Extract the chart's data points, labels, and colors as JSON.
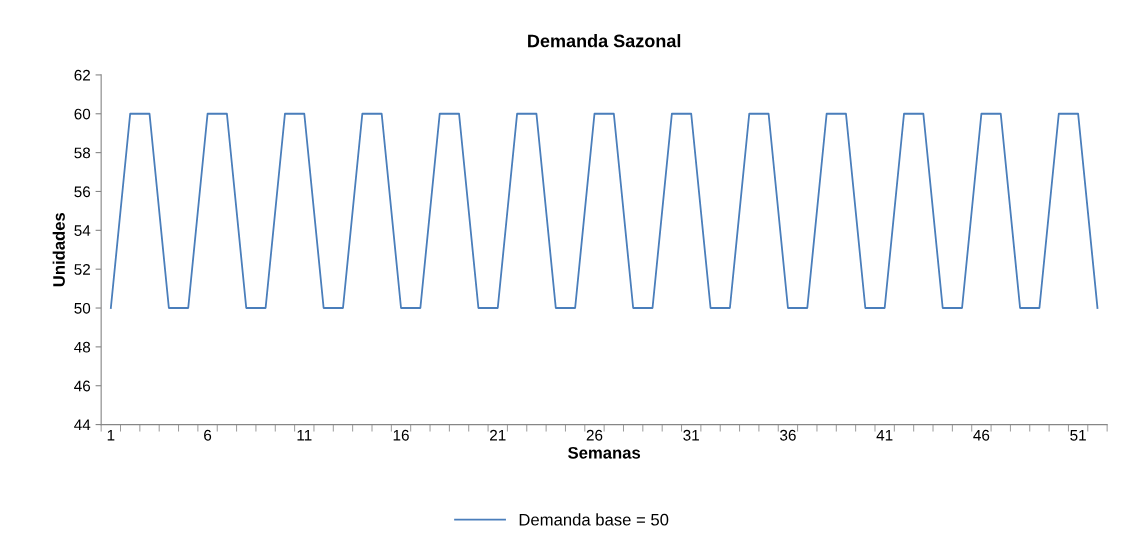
{
  "chart_data": {
    "type": "line",
    "title": "Demanda Sazonal",
    "xlabel": "Semanas",
    "ylabel": "Unidades",
    "categories": [
      "1",
      null,
      null,
      null,
      null,
      "6",
      null,
      null,
      null,
      null,
      "11",
      null,
      null,
      null,
      null,
      "16",
      null,
      null,
      null,
      null,
      "21",
      null,
      null,
      null,
      null,
      "26",
      null,
      null,
      null,
      null,
      "31",
      null,
      null,
      null,
      null,
      "36",
      null,
      null,
      null,
      null,
      "41",
      null,
      null,
      null,
      null,
      "46",
      null,
      null,
      null,
      null,
      "51",
      null
    ],
    "series": [
      {
        "name": "Demanda base = 50",
        "color": "#4a7ebb",
        "values": [
          50,
          60,
          60,
          50,
          50,
          60,
          60,
          50,
          50,
          60,
          60,
          50,
          50,
          60,
          60,
          50,
          50,
          60,
          60,
          50,
          50,
          60,
          60,
          50,
          50,
          60,
          60,
          50,
          50,
          60,
          60,
          50,
          50,
          60,
          60,
          50,
          50,
          60,
          60,
          50,
          50,
          60,
          60,
          50,
          50,
          60,
          60,
          50,
          50,
          60,
          60,
          50
        ]
      }
    ],
    "ylim": [
      44,
      62
    ],
    "yticks": [
      44,
      46,
      48,
      50,
      52,
      54,
      56,
      58,
      60,
      62
    ],
    "grid": false,
    "legend": "bottom",
    "marker": "none",
    "line_style": "solid"
  }
}
